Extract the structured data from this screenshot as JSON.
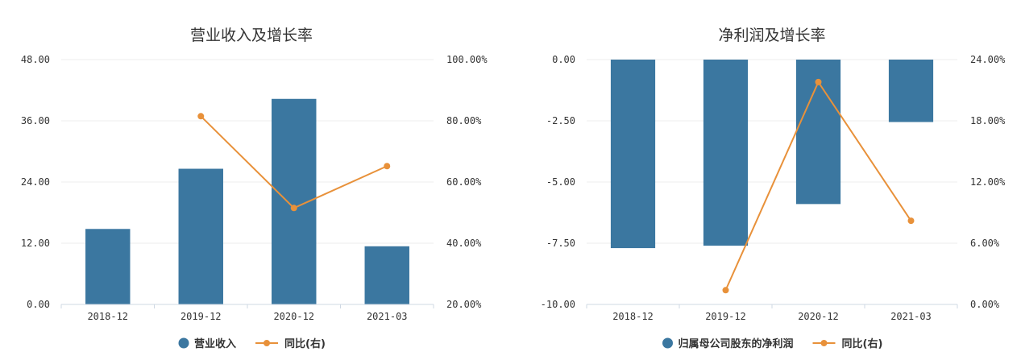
{
  "colors": {
    "bar": "#3b77a0",
    "line": "#e8913a"
  },
  "chart_data": [
    {
      "type": "bar",
      "title": "营业收入及增长率",
      "categories": [
        "2018-12",
        "2019-12",
        "2020-12",
        "2021-03"
      ],
      "series": [
        {
          "name": "营业收入",
          "type": "bar",
          "axis": "left",
          "values": [
            14.8,
            26.6,
            40.3,
            11.4
          ]
        },
        {
          "name": "同比(右)",
          "type": "line",
          "axis": "right",
          "values": [
            null,
            81.5,
            51.5,
            65.2
          ]
        }
      ],
      "ylim_left": [
        0,
        48
      ],
      "ylim_right": [
        20,
        100
      ],
      "yticks_left": [
        "0.00",
        "12.00",
        "24.00",
        "36.00",
        "48.00"
      ],
      "yticks_right": [
        "20.00%",
        "40.00%",
        "60.00%",
        "80.00%",
        "100.00%"
      ]
    },
    {
      "type": "bar",
      "title": "净利润及增长率",
      "categories": [
        "2018-12",
        "2019-12",
        "2020-12",
        "2021-03"
      ],
      "series": [
        {
          "name": "归属母公司股东的净利润",
          "type": "bar",
          "axis": "left",
          "values": [
            -7.7,
            -7.6,
            -5.9,
            -2.55
          ]
        },
        {
          "name": "同比(右)",
          "type": "line",
          "axis": "right",
          "values": [
            null,
            1.4,
            21.8,
            8.2
          ]
        }
      ],
      "ylim_left": [
        -10,
        0
      ],
      "ylim_right": [
        0,
        24
      ],
      "yticks_left": [
        "-10.00",
        "-7.50",
        "-5.00",
        "-2.50",
        "0.00"
      ],
      "yticks_right": [
        "0.00%",
        "6.00%",
        "12.00%",
        "18.00%",
        "24.00%"
      ]
    }
  ]
}
